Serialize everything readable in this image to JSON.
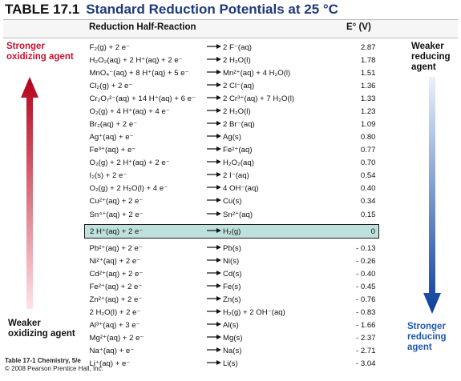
{
  "table": {
    "number": "TABLE 17.1",
    "title": "Standard Reduction Potentials at 25 °C",
    "col_reaction": "Reduction Half-Reaction",
    "col_potential": "E° (V)"
  },
  "side": {
    "top_left": "Stronger oxidizing agent",
    "bottom_left": "Weaker oxidizing agent",
    "top_right": "Weaker reducing agent",
    "bottom_right": "Stronger reducing agent"
  },
  "reactions": [
    {
      "lhs": "F₂(g) + 2 e⁻",
      "rhs": "2 F⁻(aq)",
      "e": "2.87"
    },
    {
      "lhs": "H₂O₂(aq) + 2 H⁺(aq) + 2 e⁻",
      "rhs": "2 H₂O(l)",
      "e": "1.78"
    },
    {
      "lhs": "MnO₄⁻(aq) + 8 H⁺(aq) + 5 e⁻",
      "rhs": "Mn²⁺(aq) + 4 H₂O(l)",
      "e": "1.51"
    },
    {
      "lhs": "Cl₂(g) + 2 e⁻",
      "rhs": "2 Cl⁻(aq)",
      "e": "1.36"
    },
    {
      "lhs": "Cr₂O₇²⁻(aq) + 14 H⁺(aq) + 6 e⁻",
      "rhs": "2 Cr³⁺(aq) + 7 H₂O(l)",
      "e": "1.33"
    },
    {
      "lhs": "O₂(g) + 4 H⁺(aq) + 4 e⁻",
      "rhs": "2 H₂O(l)",
      "e": "1.23"
    },
    {
      "lhs": "Br₂(aq) + 2 e⁻",
      "rhs": "2 Br⁻(aq)",
      "e": "1.09"
    },
    {
      "lhs": "Ag⁺(aq) + e⁻",
      "rhs": "Ag(s)",
      "e": "0.80"
    },
    {
      "lhs": "Fe³⁺(aq) + e⁻",
      "rhs": "Fe²⁺(aq)",
      "e": "0.77"
    },
    {
      "lhs": "O₂(g) + 2 H⁺(aq) + 2 e⁻",
      "rhs": "H₂O₂(aq)",
      "e": "0.70"
    },
    {
      "lhs": "I₂(s) + 2 e⁻",
      "rhs": "2 I⁻(aq)",
      "e": "0.54"
    },
    {
      "lhs": "O₂(g) + 2 H₂O(l) + 4 e⁻",
      "rhs": "4 OH⁻(aq)",
      "e": "0.40"
    },
    {
      "lhs": "Cu²⁺(aq) + 2 e⁻",
      "rhs": "Cu(s)",
      "e": "0.34"
    },
    {
      "lhs": "Sn⁴⁺(aq) + 2 e⁻",
      "rhs": "Sn²⁺(aq)",
      "e": "0.15"
    }
  ],
  "she": {
    "lhs": "2 H⁺(aq) + 2 e⁻",
    "rhs": "H₂(g)",
    "e": "0"
  },
  "reactions_below": [
    {
      "lhs": "Pb²⁺(aq) + 2 e⁻",
      "rhs": "Pb(s)",
      "e": "- 0.13"
    },
    {
      "lhs": "Ni²⁺(aq) + 2 e⁻",
      "rhs": "Ni(s)",
      "e": "- 0.26"
    },
    {
      "lhs": "Cd²⁺(aq) + 2 e⁻",
      "rhs": "Cd(s)",
      "e": "- 0.40"
    },
    {
      "lhs": "Fe²⁺(aq) + 2 e⁻",
      "rhs": "Fe(s)",
      "e": "- 0.45"
    },
    {
      "lhs": "Zn²⁺(aq) + 2 e⁻",
      "rhs": "Zn(s)",
      "e": "- 0.76"
    },
    {
      "lhs": "2 H₂O(l) + 2 e⁻",
      "rhs": "H₂(g) + 2 OH⁻(aq)",
      "e": "- 0.83"
    },
    {
      "lhs": "Al³⁺(aq) + 3 e⁻",
      "rhs": "Al(s)",
      "e": "- 1.66"
    },
    {
      "lhs": "Mg²⁺(aq) + 2 e⁻",
      "rhs": "Mg(s)",
      "e": "- 2.37"
    },
    {
      "lhs": "Na⁺(aq) + e⁻",
      "rhs": "Na(s)",
      "e": "- 2.71"
    },
    {
      "lhs": "Li⁺(aq) + e⁻",
      "rhs": "Li(s)",
      "e": "- 3.04"
    }
  ],
  "footer": {
    "line1": "Table 17-1 Chemistry, 5/e",
    "line2": "© 2008 Pearson Prentice Hall, Inc."
  },
  "colors": {
    "oxidizing": "#c8102e",
    "reducing": "#1f57b5",
    "she_highlight": "#bfe1dd"
  }
}
